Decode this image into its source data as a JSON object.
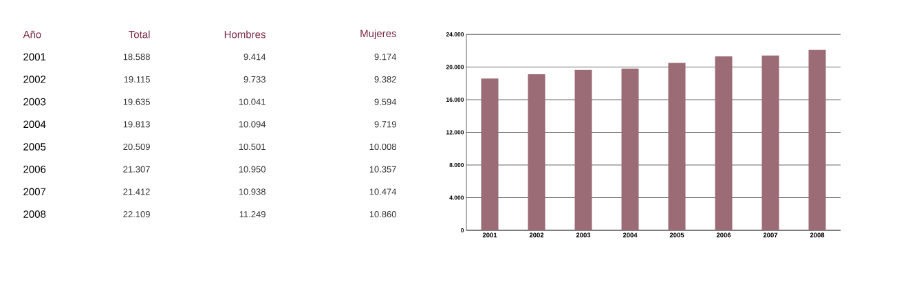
{
  "chart_data": {
    "type": "bar",
    "categories": [
      "2001",
      "2002",
      "2003",
      "2004",
      "2005",
      "2006",
      "2007",
      "2008"
    ],
    "values": [
      18588,
      19115,
      19635,
      19813,
      20509,
      21307,
      21412,
      22109
    ],
    "color": "#9b6b76",
    "ylim": [
      0,
      24000
    ],
    "yticks": [
      {
        "value": 0,
        "label": "0"
      },
      {
        "value": 4000,
        "label": "4.000"
      },
      {
        "value": 8000,
        "label": "8.000"
      },
      {
        "value": 12000,
        "label": "12.000"
      },
      {
        "value": 16000,
        "label": "16.000"
      },
      {
        "value": 20000,
        "label": "20.000"
      },
      {
        "value": 24000,
        "label": "24.000"
      }
    ],
    "grid": "y",
    "annotations": [
      "Año",
      "Total",
      "Hombres",
      "Mujeres",
      "18.588",
      "19.115",
      "19.635",
      "19.813",
      "20.509",
      "21.307",
      "21.412",
      "22.109",
      "9.414",
      "9.733",
      "10.041",
      "10.094",
      "10.501",
      "10.950",
      "10.938",
      "11.249",
      "9.174",
      "9.382",
      "9.594",
      "9.719",
      "10.008",
      "10.357",
      "10.474",
      "10.860"
    ]
  }
}
